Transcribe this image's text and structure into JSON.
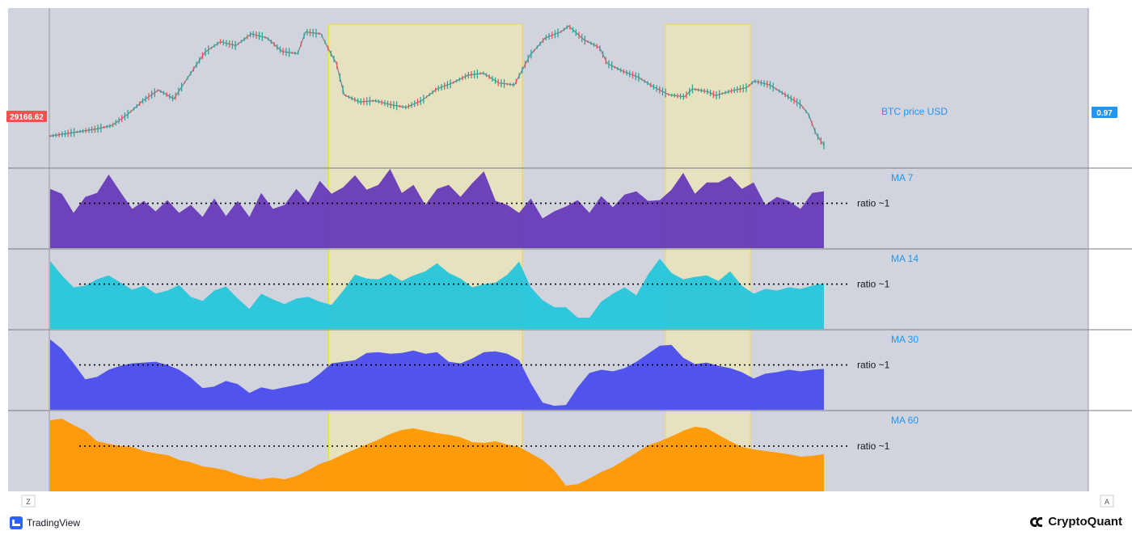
{
  "chart_data": {
    "type": "area",
    "price_panel": {
      "series_label": "BTC price USD",
      "current_price_label": "29166.62",
      "right_value_label": "0.97",
      "price_path": [
        [
          0,
          31500
        ],
        [
          0.03,
          32400
        ],
        [
          0.06,
          33300
        ],
        [
          0.08,
          34200
        ],
        [
          0.1,
          37000
        ],
        [
          0.12,
          40500
        ],
        [
          0.14,
          43200
        ],
        [
          0.16,
          41000
        ],
        [
          0.18,
          47000
        ],
        [
          0.2,
          52800
        ],
        [
          0.22,
          55500
        ],
        [
          0.24,
          54500
        ],
        [
          0.26,
          57500
        ],
        [
          0.28,
          56500
        ],
        [
          0.3,
          53000
        ],
        [
          0.32,
          52500
        ],
        [
          0.33,
          58000
        ],
        [
          0.35,
          57500
        ],
        [
          0.36,
          53500
        ],
        [
          0.37,
          50000
        ],
        [
          0.38,
          42000
        ],
        [
          0.4,
          40200
        ],
        [
          0.42,
          40500
        ],
        [
          0.44,
          39500
        ],
        [
          0.46,
          38800
        ],
        [
          0.48,
          40500
        ],
        [
          0.5,
          43500
        ],
        [
          0.52,
          45000
        ],
        [
          0.54,
          47000
        ],
        [
          0.56,
          47500
        ],
        [
          0.58,
          45000
        ],
        [
          0.6,
          44500
        ],
        [
          0.62,
          52000
        ],
        [
          0.64,
          56500
        ],
        [
          0.66,
          58000
        ],
        [
          0.67,
          59500
        ],
        [
          0.69,
          56000
        ],
        [
          0.71,
          54000
        ],
        [
          0.72,
          50000
        ],
        [
          0.74,
          48000
        ],
        [
          0.76,
          46500
        ],
        [
          0.78,
          44000
        ],
        [
          0.8,
          42000
        ],
        [
          0.82,
          41500
        ],
        [
          0.83,
          43500
        ],
        [
          0.85,
          42800
        ],
        [
          0.86,
          41800
        ],
        [
          0.88,
          43000
        ],
        [
          0.9,
          43800
        ],
        [
          0.91,
          45500
        ],
        [
          0.93,
          44500
        ],
        [
          0.95,
          42000
        ],
        [
          0.97,
          39500
        ],
        [
          0.98,
          37000
        ],
        [
          0.99,
          32000
        ],
        [
          1.0,
          29166
        ]
      ]
    },
    "ratio_panels": [
      {
        "name": "MA 7",
        "ratio_label": "ratio ~1",
        "color": "#673ab7",
        "values": [
          0.74,
          0.68,
          0.44,
          0.64,
          0.69,
          0.92,
          0.7,
          0.49,
          0.59,
          0.46,
          0.6,
          0.44,
          0.54,
          0.39,
          0.62,
          0.4,
          0.59,
          0.39,
          0.69,
          0.49,
          0.54,
          0.74,
          0.57,
          0.84,
          0.68,
          0.76,
          0.91,
          0.73,
          0.79,
          0.99,
          0.69,
          0.79,
          0.54,
          0.74,
          0.79,
          0.64,
          0.81,
          0.96,
          0.59,
          0.54,
          0.44,
          0.62,
          0.37,
          0.46,
          0.52,
          0.6,
          0.44,
          0.65,
          0.51,
          0.67,
          0.71,
          0.59,
          0.6,
          0.73,
          0.94,
          0.68,
          0.82,
          0.82,
          0.9,
          0.74,
          0.82,
          0.54,
          0.64,
          0.59,
          0.49,
          0.69,
          0.71
        ]
      },
      {
        "name": "MA 14",
        "ratio_label": "ratio ~1",
        "color": "#26c6da",
        "values": [
          0.85,
          0.67,
          0.52,
          0.54,
          0.62,
          0.67,
          0.58,
          0.49,
          0.54,
          0.44,
          0.48,
          0.55,
          0.4,
          0.35,
          0.48,
          0.53,
          0.38,
          0.25,
          0.44,
          0.37,
          0.31,
          0.38,
          0.4,
          0.34,
          0.3,
          0.48,
          0.68,
          0.63,
          0.62,
          0.69,
          0.6,
          0.67,
          0.72,
          0.82,
          0.7,
          0.63,
          0.52,
          0.56,
          0.58,
          0.68,
          0.84,
          0.52,
          0.36,
          0.27,
          0.27,
          0.14,
          0.14,
          0.34,
          0.44,
          0.52,
          0.42,
          0.68,
          0.88,
          0.7,
          0.62,
          0.65,
          0.67,
          0.6,
          0.72,
          0.54,
          0.44,
          0.5,
          0.48,
          0.52,
          0.5,
          0.54,
          0.57
        ]
      },
      {
        "name": "MA 30",
        "ratio_label": "ratio ~1",
        "color": "#4a4ced",
        "values": [
          0.88,
          0.76,
          0.58,
          0.38,
          0.41,
          0.5,
          0.55,
          0.58,
          0.59,
          0.6,
          0.56,
          0.5,
          0.4,
          0.27,
          0.29,
          0.36,
          0.32,
          0.21,
          0.28,
          0.25,
          0.28,
          0.31,
          0.34,
          0.45,
          0.58,
          0.6,
          0.62,
          0.71,
          0.72,
          0.7,
          0.71,
          0.74,
          0.7,
          0.72,
          0.6,
          0.58,
          0.64,
          0.72,
          0.73,
          0.7,
          0.62,
          0.33,
          0.09,
          0.05,
          0.06,
          0.28,
          0.46,
          0.5,
          0.48,
          0.52,
          0.6,
          0.7,
          0.8,
          0.81,
          0.65,
          0.57,
          0.59,
          0.55,
          0.52,
          0.47,
          0.39,
          0.45,
          0.47,
          0.5,
          0.48,
          0.5,
          0.51
        ]
      },
      {
        "name": "MA 60",
        "ratio_label": "ratio ~1",
        "color": "#ff9800",
        "values": [
          0.88,
          0.9,
          0.82,
          0.75,
          0.62,
          0.59,
          0.56,
          0.55,
          0.5,
          0.47,
          0.45,
          0.39,
          0.36,
          0.31,
          0.29,
          0.26,
          0.21,
          0.17,
          0.15,
          0.17,
          0.15,
          0.19,
          0.26,
          0.34,
          0.39,
          0.46,
          0.52,
          0.58,
          0.64,
          0.71,
          0.76,
          0.78,
          0.75,
          0.72,
          0.7,
          0.67,
          0.61,
          0.6,
          0.62,
          0.58,
          0.55,
          0.47,
          0.39,
          0.26,
          0.07,
          0.09,
          0.16,
          0.24,
          0.3,
          0.39,
          0.48,
          0.57,
          0.62,
          0.68,
          0.75,
          0.8,
          0.78,
          0.7,
          0.62,
          0.55,
          0.52,
          0.5,
          0.48,
          0.46,
          0.43,
          0.44,
          0.46
        ]
      }
    ],
    "highlight_ranges": [
      [
        0.36,
        0.61
      ],
      [
        0.795,
        0.905
      ]
    ],
    "grid": false,
    "legend": "right"
  },
  "footer": {
    "tradingview_label": "TradingView",
    "cryptoquant_label": "CryptoQuant"
  },
  "axis_buttons": {
    "left": "Z",
    "right": "A"
  }
}
